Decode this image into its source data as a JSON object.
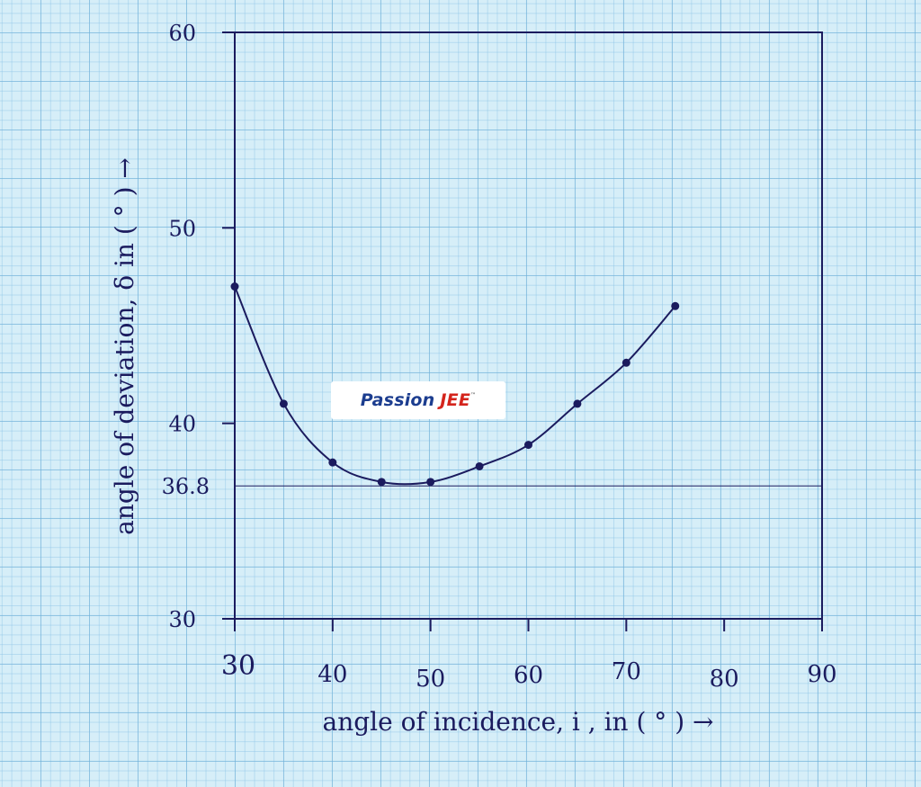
{
  "chart_data": {
    "type": "scatter",
    "title": "",
    "xlabel": "angle of incidence, i , in ( ° ) →",
    "ylabel": "angle of deviation, δ in ( ° ) →",
    "xlim": [
      30,
      90
    ],
    "ylim": [
      30,
      60
    ],
    "x_ticks": [
      "30",
      "40",
      "50",
      "60",
      "70",
      "80",
      "90"
    ],
    "y_ticks": [
      "30",
      "40",
      "50",
      "60"
    ],
    "reference_line": {
      "y": 36.8,
      "label": "36.8"
    },
    "points": [
      {
        "x": 30,
        "y": 47
      },
      {
        "x": 35,
        "y": 41
      },
      {
        "x": 40,
        "y": 38
      },
      {
        "x": 45,
        "y": 37
      },
      {
        "x": 50,
        "y": 37
      },
      {
        "x": 55,
        "y": 37.8
      },
      {
        "x": 60,
        "y": 38.9
      },
      {
        "x": 65,
        "y": 41
      },
      {
        "x": 70,
        "y": 43.1
      },
      {
        "x": 75,
        "y": 46
      }
    ],
    "curve": {
      "fit": "smooth",
      "min_x": 47.5,
      "min_y": 36.8
    },
    "grid": true,
    "colors": {
      "ink": "#1b1b5e",
      "paper": "#d6eef8",
      "grid": "#8cc3e6"
    }
  },
  "watermark": {
    "part1": "Passion",
    "part2": "JEE",
    "tm": "™"
  }
}
